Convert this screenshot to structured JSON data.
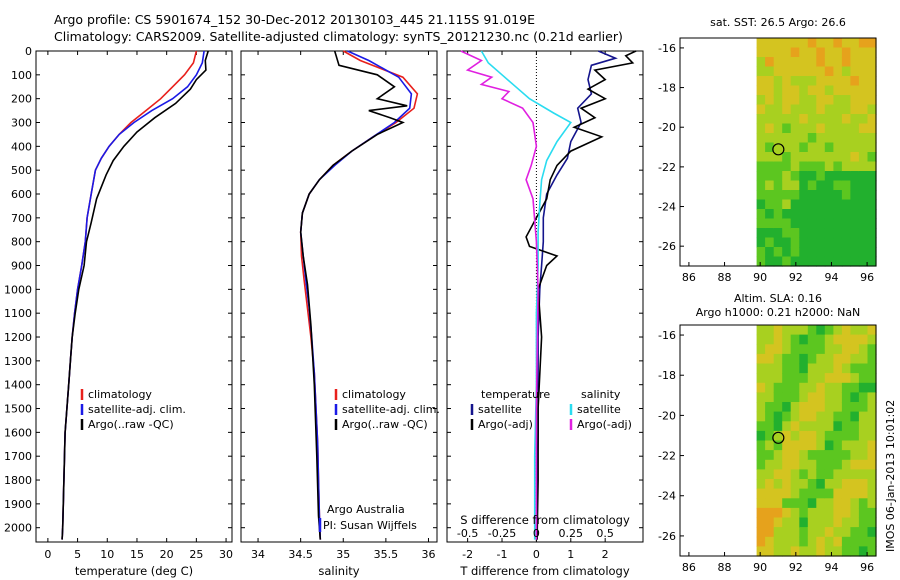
{
  "header": {
    "line1": "Argo profile: CS 5901674_152 30-Dec-2012 20130103_445 21.115S 91.019E",
    "line2": "Climatology: CARS2009. Satellite-adjusted climatology: synTS_20121230.nc (0.21d earlier)"
  },
  "stamp": "IMOS 06-Jan-2013 10:01:02",
  "colors": {
    "climatology": "#e8201c",
    "satellite": "#1a1ae6",
    "argo": "#000000",
    "t_satellite": "#14148c",
    "s_satellite": "#2adcf0",
    "s_argo": "#e020e0"
  },
  "depth_axis": {
    "ticks": [
      0,
      100,
      200,
      300,
      400,
      500,
      600,
      700,
      800,
      900,
      1000,
      1100,
      1200,
      1300,
      1400,
      1500,
      1600,
      1700,
      1800,
      1900,
      2000
    ],
    "lim": [
      0,
      2060
    ],
    "reversed": true
  },
  "chart_data": [
    {
      "type": "line",
      "xlabel": "temperature (deg C)",
      "xlim": [
        -2,
        31
      ],
      "xticks": [
        0,
        5,
        10,
        15,
        20,
        25,
        30
      ],
      "legend": [
        "climatology",
        "satellite-adj. clim.",
        "Argo(..raw -QC)"
      ],
      "series": [
        {
          "name": "climatology",
          "color_key": "climatology",
          "x": [
            25,
            24.5,
            23,
            21,
            19,
            16.5,
            14,
            12,
            10.3,
            9,
            8,
            7.3,
            6.6,
            6.3,
            5.7,
            5,
            4.5,
            4.1,
            3.8,
            3.5,
            3.2,
            2.9,
            2.7,
            2.5,
            2.4
          ],
          "y": [
            0,
            50,
            100,
            150,
            200,
            250,
            300,
            350,
            400,
            450,
            500,
            600,
            700,
            800,
            900,
            1000,
            1100,
            1200,
            1300,
            1400,
            1500,
            1600,
            1800,
            2000,
            2050
          ]
        },
        {
          "name": "satellite-adj. clim.",
          "color_key": "satellite",
          "x": [
            26.3,
            26,
            25,
            23.5,
            21,
            17.5,
            14.5,
            12,
            10.3,
            9,
            8,
            7.3,
            6.6,
            6.3,
            5.7,
            5,
            4.5,
            4.1,
            3.8,
            3.5,
            3.2,
            2.9,
            2.7,
            2.5,
            2.4
          ],
          "y": [
            0,
            50,
            100,
            150,
            200,
            250,
            300,
            350,
            400,
            450,
            500,
            600,
            700,
            800,
            900,
            1000,
            1100,
            1200,
            1300,
            1400,
            1500,
            1600,
            1800,
            2000,
            2050
          ]
        },
        {
          "name": "Argo(..raw -QC)",
          "color_key": "argo",
          "x": [
            27,
            26.5,
            26.6,
            25,
            24,
            21.5,
            18,
            15,
            12.8,
            11,
            9.8,
            8.2,
            7.3,
            6.5,
            6.1,
            5.2,
            4.6,
            4.1,
            3.8,
            3.5,
            3.2,
            2.9,
            2.7,
            2.5,
            2.4
          ],
          "y": [
            0,
            40,
            80,
            120,
            160,
            220,
            280,
            340,
            400,
            460,
            520,
            620,
            720,
            800,
            900,
            1000,
            1100,
            1200,
            1300,
            1400,
            1500,
            1600,
            1800,
            2000,
            2050
          ]
        }
      ]
    },
    {
      "type": "line",
      "xlabel": "salinity",
      "xlim": [
        33.8,
        36.1
      ],
      "xticks": [
        34,
        34.5,
        35,
        35.5,
        36
      ],
      "legend": [
        "climatology",
        "satellite-adj. clim.",
        "Argo(..raw -QC)"
      ],
      "annotation": [
        "Argo Australia",
        "PI: Susan Wijffels"
      ],
      "series": [
        {
          "name": "climatology",
          "color_key": "climatology",
          "x": [
            35.0,
            35.2,
            35.7,
            35.87,
            35.83,
            35.62,
            35.35,
            35.1,
            34.88,
            34.72,
            34.6,
            34.52,
            34.5,
            34.51,
            34.54,
            34.58,
            34.62,
            34.66,
            34.68,
            34.7,
            34.71,
            34.72,
            34.73
          ],
          "y": [
            0,
            40,
            110,
            180,
            240,
            300,
            360,
            420,
            480,
            540,
            600,
            680,
            760,
            860,
            960,
            1080,
            1200,
            1350,
            1500,
            1650,
            1800,
            1950,
            2050
          ]
        },
        {
          "name": "satellite-adj. clim.",
          "color_key": "satellite",
          "x": [
            35.05,
            35.3,
            35.65,
            35.8,
            35.78,
            35.6,
            35.35,
            35.1,
            34.9,
            34.72,
            34.6,
            34.52,
            34.5,
            34.53,
            34.56,
            34.6,
            34.63,
            34.66,
            34.68,
            34.7,
            34.71,
            34.72,
            34.73
          ],
          "y": [
            0,
            40,
            110,
            180,
            240,
            300,
            360,
            420,
            480,
            540,
            600,
            680,
            760,
            860,
            960,
            1080,
            1200,
            1350,
            1500,
            1650,
            1800,
            1950,
            2050
          ]
        },
        {
          "name": "Argo(..raw -QC)",
          "color_key": "argo",
          "x": [
            34.9,
            34.95,
            35.4,
            35.6,
            35.4,
            35.75,
            35.3,
            35.55,
            35.7,
            35.4,
            35.1,
            34.88,
            34.72,
            34.6,
            34.52,
            34.5,
            34.53,
            34.58,
            34.62,
            34.66,
            34.69,
            34.71,
            34.73
          ],
          "y": [
            0,
            60,
            100,
            150,
            200,
            230,
            250,
            280,
            300,
            350,
            420,
            480,
            540,
            600,
            680,
            760,
            860,
            980,
            1150,
            1400,
            1700,
            1950,
            2050
          ]
        }
      ]
    },
    {
      "type": "line",
      "xlabel": "T difference from climatology",
      "x2label": "S difference from climatology",
      "xlim": [
        -2.6,
        3.1
      ],
      "xticks": [
        -2,
        -1,
        0,
        1,
        2
      ],
      "x2ticks": [
        -0.5,
        -0.25,
        0,
        0.25,
        0.5
      ],
      "legend_temperature": [
        "temperature",
        "satellite",
        "Argo(-adj)"
      ],
      "legend_salinity": [
        "salinity",
        "satellite",
        "Argo(-adj)"
      ],
      "series": [
        {
          "name": "temperature satellite",
          "color_key": "t_satellite",
          "x": [
            1.8,
            2.3,
            1.6,
            1.5,
            1.6,
            1.2,
            1.3,
            1.0,
            0.9,
            0.6,
            0.3,
            0.2,
            0.2,
            0.15,
            0.1,
            0.05,
            0.05,
            0.05,
            0.02,
            0.02
          ],
          "y": [
            0,
            30,
            60,
            120,
            180,
            240,
            300,
            380,
            450,
            520,
            600,
            700,
            800,
            900,
            1000,
            1200,
            1400,
            1600,
            1800,
            2050
          ]
        },
        {
          "name": "temperature Argo(-adj)",
          "color_key": "argo",
          "x": [
            2.9,
            2.6,
            2.8,
            1.7,
            2.0,
            1.5,
            2.0,
            1.3,
            1.7,
            1.1,
            1.9,
            1.0,
            0.6,
            0.4,
            0.3,
            0.0,
            -0.3,
            -0.2,
            0.6,
            0.3,
            0.05,
            0.15,
            0.05,
            0.05,
            0.02
          ],
          "y": [
            0,
            20,
            50,
            80,
            120,
            160,
            200,
            240,
            280,
            320,
            360,
            420,
            480,
            540,
            620,
            700,
            780,
            820,
            860,
            900,
            1000,
            1200,
            1500,
            1800,
            2050
          ]
        },
        {
          "name": "salinity satellite",
          "color_key": "s_satellite",
          "x": [
            -1.6,
            -1.4,
            -1.0,
            -0.6,
            -0.2,
            0.5,
            1.0,
            0.6,
            0.3,
            0.15,
            0.1,
            0.05,
            0.05,
            0.0,
            0.0,
            -0.05,
            -0.05
          ],
          "y": [
            0,
            50,
            100,
            150,
            200,
            260,
            300,
            380,
            460,
            540,
            640,
            760,
            900,
            1100,
            1400,
            1700,
            2050
          ]
        },
        {
          "name": "salinity Argo(-adj)",
          "color_key": "s_argo",
          "x": [
            -2.2,
            -1.6,
            -2.0,
            -1.3,
            -1.6,
            -0.8,
            -1.0,
            -0.4,
            -0.1,
            0.0,
            -0.15,
            -0.3,
            -0.1,
            0.0,
            0.05,
            0.0,
            0.0
          ],
          "y": [
            0,
            40,
            80,
            110,
            140,
            170,
            200,
            240,
            300,
            400,
            480,
            540,
            620,
            800,
            1000,
            1500,
            2050
          ]
        }
      ]
    },
    {
      "type": "heatmap",
      "title": "sat. SST: 26.5 Argo: 26.6",
      "xlim": [
        85.5,
        96.5
      ],
      "ylim": [
        -27,
        -15.5
      ],
      "xticks": [
        86,
        88,
        90,
        92,
        94,
        96
      ],
      "yticks": [
        -16,
        -18,
        -20,
        -22,
        -24,
        -26
      ],
      "data_region_xlim": [
        89.8,
        96.5
      ],
      "argo_position": {
        "lon": 91.019,
        "lat": -21.115
      },
      "palette": [
        "#22b02e",
        "#5cc620",
        "#a8d020",
        "#d4c420",
        "#e6a21c"
      ]
    },
    {
      "type": "heatmap",
      "title": "Altim. SLA: 0.16",
      "subtitle": "Argo h1000: 0.21 h2000: NaN",
      "xlim": [
        85.5,
        96.5
      ],
      "ylim": [
        -27,
        -15.5
      ],
      "xticks": [
        86,
        88,
        90,
        92,
        94,
        96
      ],
      "yticks": [
        -16,
        -18,
        -20,
        -22,
        -24,
        -26
      ],
      "data_region_xlim": [
        89.8,
        96.5
      ],
      "argo_position": {
        "lon": 91.019,
        "lat": -21.115
      },
      "palette": [
        "#22b02e",
        "#5cc620",
        "#a8d020",
        "#d4c420",
        "#e6a21c"
      ]
    }
  ]
}
